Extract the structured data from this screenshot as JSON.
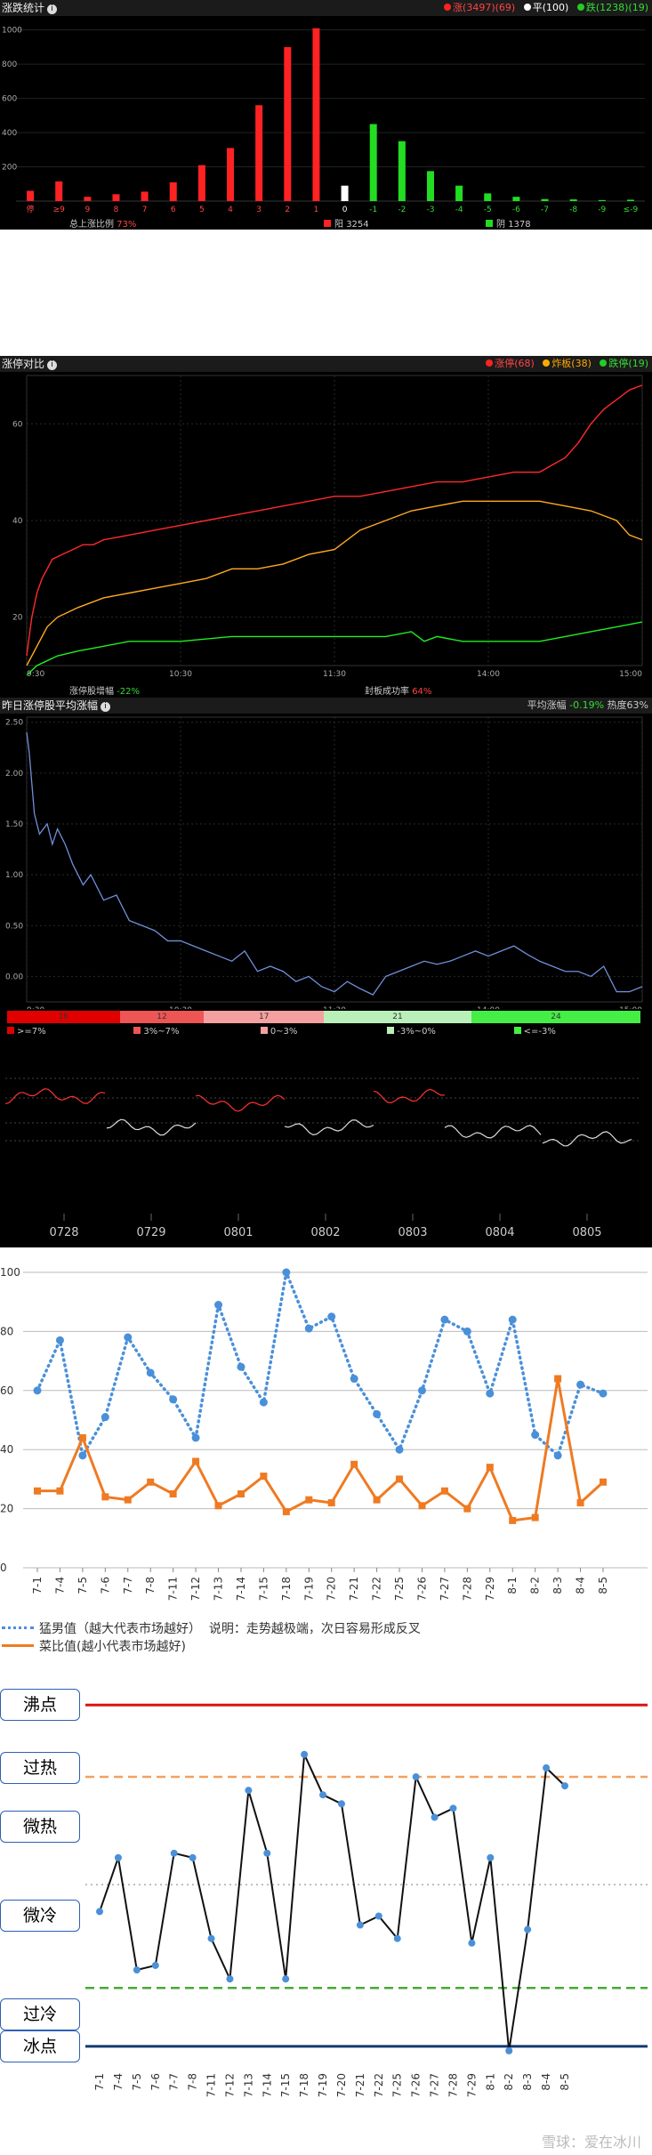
{
  "panel1": {
    "title": "涨跌统计",
    "legend": [
      {
        "label": "涨(3497)(69)",
        "color": "#ff2222"
      },
      {
        "label": "平(100)",
        "color": "#ffffff"
      },
      {
        "label": "跌(1238)(19)",
        "color": "#22cc22"
      }
    ],
    "ratio_label": "总上涨比例",
    "ratio_value": "73%",
    "up_label": "阳",
    "up_value": "3254",
    "down_label": "阴",
    "down_value": "1378"
  },
  "panel2": {
    "title": "涨停对比",
    "legend": [
      {
        "label": "涨停(68)",
        "color": "#ff2222"
      },
      {
        "label": "炸板(38)",
        "color": "#ffaa00"
      },
      {
        "label": "跌停(19)",
        "color": "#22cc22"
      }
    ],
    "footer_left_label": "涨停股增幅",
    "footer_left_value": "-22%",
    "footer_right_label": "封板成功率",
    "footer_right_value": "64%"
  },
  "panel3": {
    "title": "昨日涨停股平均涨幅",
    "avg_label": "平均涨幅",
    "avg_value": "-0.19%",
    "heat_label": "热度",
    "heat_value": "63%"
  },
  "distribution": {
    "segments": [
      {
        "value": "16",
        "color": "#e00000"
      },
      {
        "value": "12",
        "color": "#ee5555"
      },
      {
        "value": "17",
        "color": "#f5a0a0"
      },
      {
        "value": "21",
        "color": "#b9f0b9"
      },
      {
        "value": "24",
        "color": "#44ee44"
      }
    ],
    "legend": [
      {
        "label": ">=7%",
        "color": "#e00000"
      },
      {
        "label": "3%~7%",
        "color": "#ee5555"
      },
      {
        "label": "0~3%",
        "color": "#f5a0a0"
      },
      {
        "label": "-3%~0%",
        "color": "#b9f0b9"
      },
      {
        "label": "<=-3%",
        "color": "#44ee44"
      }
    ]
  },
  "panel4": {
    "dates": [
      "0728",
      "0729",
      "0801",
      "0802",
      "0803",
      "0804",
      "0805"
    ]
  },
  "chart_data": [
    {
      "type": "bar",
      "categories": [
        "停",
        "≥9",
        "9",
        "8",
        "7",
        "6",
        "5",
        "4",
        "3",
        "2",
        "1",
        "0",
        "-1",
        "-2",
        "-3",
        "-4",
        "-5",
        "-6",
        "-7",
        "-8",
        "-9",
        "≤-9"
      ],
      "values": [
        60,
        115,
        25,
        40,
        55,
        110,
        210,
        310,
        560,
        900,
        1010,
        90,
        450,
        350,
        175,
        90,
        45,
        25,
        12,
        10,
        6,
        8
      ],
      "colors": [
        "#ff2222",
        "#ff2222",
        "#ff2222",
        "#ff2222",
        "#ff2222",
        "#ff2222",
        "#ff2222",
        "#ff2222",
        "#ff2222",
        "#ff2222",
        "#ff2222",
        "#ffffff",
        "#22dd22",
        "#22dd22",
        "#22dd22",
        "#22dd22",
        "#22dd22",
        "#22dd22",
        "#22dd22",
        "#22dd22",
        "#22dd22",
        "#22dd22"
      ],
      "yticks": [
        200,
        400,
        600,
        800,
        1000
      ],
      "ylim": [
        0,
        1050
      ]
    },
    {
      "type": "line",
      "xticks": [
        "9:30",
        "10:30",
        "11:30",
        "14:00",
        "15:00"
      ],
      "yticks": [
        20,
        40,
        60
      ],
      "ylim": [
        10,
        70
      ],
      "series": [
        {
          "color": "#ff2a2a",
          "x": [
            0,
            2,
            4,
            6,
            8,
            10,
            14,
            18,
            22,
            26,
            30,
            40,
            50,
            60,
            70,
            80,
            90,
            100,
            110,
            120,
            130,
            140,
            150,
            160,
            170,
            180,
            190,
            200,
            210,
            215,
            220,
            225,
            230,
            235,
            240
          ],
          "y": [
            12,
            20,
            25,
            28,
            30,
            32,
            33,
            34,
            35,
            35,
            36,
            37,
            38,
            39,
            40,
            41,
            42,
            43,
            44,
            45,
            45,
            46,
            47,
            48,
            48,
            49,
            50,
            50,
            53,
            56,
            60,
            63,
            65,
            67,
            68
          ]
        },
        {
          "color": "#ffaa22",
          "x": [
            0,
            4,
            8,
            12,
            16,
            20,
            30,
            40,
            50,
            60,
            70,
            80,
            90,
            100,
            110,
            120,
            130,
            140,
            150,
            160,
            170,
            180,
            190,
            200,
            210,
            220,
            230,
            235,
            240
          ],
          "y": [
            10,
            14,
            18,
            20,
            21,
            22,
            24,
            25,
            26,
            27,
            28,
            30,
            30,
            31,
            33,
            34,
            38,
            40,
            42,
            43,
            44,
            44,
            44,
            44,
            43,
            42,
            40,
            37,
            36
          ]
        },
        {
          "color": "#22ee22",
          "x": [
            0,
            4,
            8,
            12,
            20,
            30,
            40,
            60,
            80,
            100,
            120,
            140,
            150,
            155,
            160,
            170,
            180,
            200,
            210,
            220,
            230,
            240
          ],
          "y": [
            8,
            10,
            11,
            12,
            13,
            14,
            15,
            15,
            16,
            16,
            16,
            16,
            17,
            15,
            16,
            15,
            15,
            15,
            16,
            17,
            18,
            19
          ]
        }
      ]
    },
    {
      "type": "line",
      "xticks": [
        "9:30",
        "10:30",
        "11:30",
        "14:00",
        "15:00"
      ],
      "yticks": [
        0.0,
        0.5,
        1.0,
        1.5,
        2.0,
        2.5
      ],
      "ylim": [
        -0.25,
        2.55
      ],
      "series": [
        {
          "color": "#6f8fd8",
          "x": [
            0,
            1,
            2,
            3,
            5,
            8,
            10,
            12,
            15,
            18,
            22,
            25,
            30,
            35,
            40,
            45,
            50,
            55,
            60,
            65,
            70,
            75,
            80,
            85,
            90,
            95,
            100,
            105,
            110,
            115,
            120,
            125,
            130,
            135,
            140,
            145,
            150,
            155,
            160,
            165,
            170,
            175,
            180,
            185,
            190,
            195,
            200,
            205,
            210,
            215,
            220,
            225,
            230,
            235,
            240
          ],
          "y": [
            2.4,
            2.2,
            1.9,
            1.6,
            1.4,
            1.5,
            1.3,
            1.45,
            1.3,
            1.1,
            0.9,
            1.0,
            0.75,
            0.8,
            0.55,
            0.5,
            0.45,
            0.35,
            0.35,
            0.3,
            0.25,
            0.2,
            0.15,
            0.25,
            0.05,
            0.1,
            0.05,
            -0.05,
            0.0,
            -0.1,
            -0.15,
            -0.05,
            -0.12,
            -0.18,
            0.0,
            0.05,
            0.1,
            0.15,
            0.12,
            0.15,
            0.2,
            0.25,
            0.2,
            0.25,
            0.3,
            0.22,
            0.15,
            0.1,
            0.05,
            0.05,
            0.0,
            0.1,
            -0.15,
            -0.15,
            -0.1
          ]
        }
      ]
    },
    {
      "type": "line",
      "categories": [
        "7-1",
        "7-4",
        "7-5",
        "7-6",
        "7-7",
        "7-8",
        "7-11",
        "7-12",
        "7-13",
        "7-14",
        "7-15",
        "7-18",
        "7-19",
        "7-20",
        "7-21",
        "7-22",
        "7-25",
        "7-26",
        "7-27",
        "7-28",
        "7-29",
        "8-1",
        "8-2",
        "8-3",
        "8-4",
        "8-5"
      ],
      "yticks": [
        0,
        20,
        40,
        60,
        80,
        100
      ],
      "ylim": [
        0,
        100
      ],
      "series": [
        {
          "name": "猛男值（越大代表市场越好）",
          "color": "#4a90d9",
          "style": "dotted",
          "values": [
            60,
            77,
            38,
            51,
            78,
            66,
            57,
            44,
            89,
            68,
            56,
            100,
            81,
            85,
            64,
            52,
            40,
            60,
            84,
            80,
            59,
            84,
            45,
            38,
            62,
            59
          ]
        },
        {
          "name": "菜比值(越小代表市场越好)",
          "color": "#ef7a22",
          "style": "solid",
          "values": [
            26,
            26,
            44,
            24,
            23,
            29,
            25,
            36,
            21,
            25,
            31,
            19,
            23,
            22,
            35,
            23,
            30,
            21,
            26,
            20,
            34,
            16,
            17,
            64,
            22,
            29
          ]
        }
      ],
      "note": "说明：走势越极端，次日容易形成反叉"
    },
    {
      "type": "line",
      "categories": [
        "7-1",
        "7-4",
        "7-5",
        "7-6",
        "7-7",
        "7-8",
        "7-11",
        "7-12",
        "7-13",
        "7-14",
        "7-15",
        "7-18",
        "7-19",
        "7-20",
        "7-21",
        "7-22",
        "7-25",
        "7-26",
        "7-27",
        "7-28",
        "7-29",
        "8-1",
        "8-2",
        "8-3",
        "8-4",
        "8-5"
      ],
      "levels": [
        "沸点",
        "过热",
        "微热",
        "微冷",
        "过冷",
        "冰点"
      ],
      "reference_lines": [
        {
          "value": 100,
          "color": "#dd1111",
          "style": "solid"
        },
        {
          "value": 84,
          "color": "#f4a060",
          "style": "dashed"
        },
        {
          "value": 60,
          "color": "#aaaaaa",
          "style": "dotted"
        },
        {
          "value": 37,
          "color": "#44aa33",
          "style": "dashed"
        },
        {
          "value": 24,
          "color": "#123a70",
          "style": "solid"
        }
      ],
      "ylim": [
        20,
        106
      ],
      "series": [
        {
          "color": "#111111",
          "point_color": "#4a90d9",
          "values": [
            54,
            66,
            41,
            42,
            67,
            66,
            48,
            39,
            81,
            67,
            39,
            89,
            80,
            78,
            51,
            53,
            48,
            84,
            75,
            77,
            47,
            66,
            23,
            50,
            86,
            82
          ]
        }
      ]
    }
  ]
}
